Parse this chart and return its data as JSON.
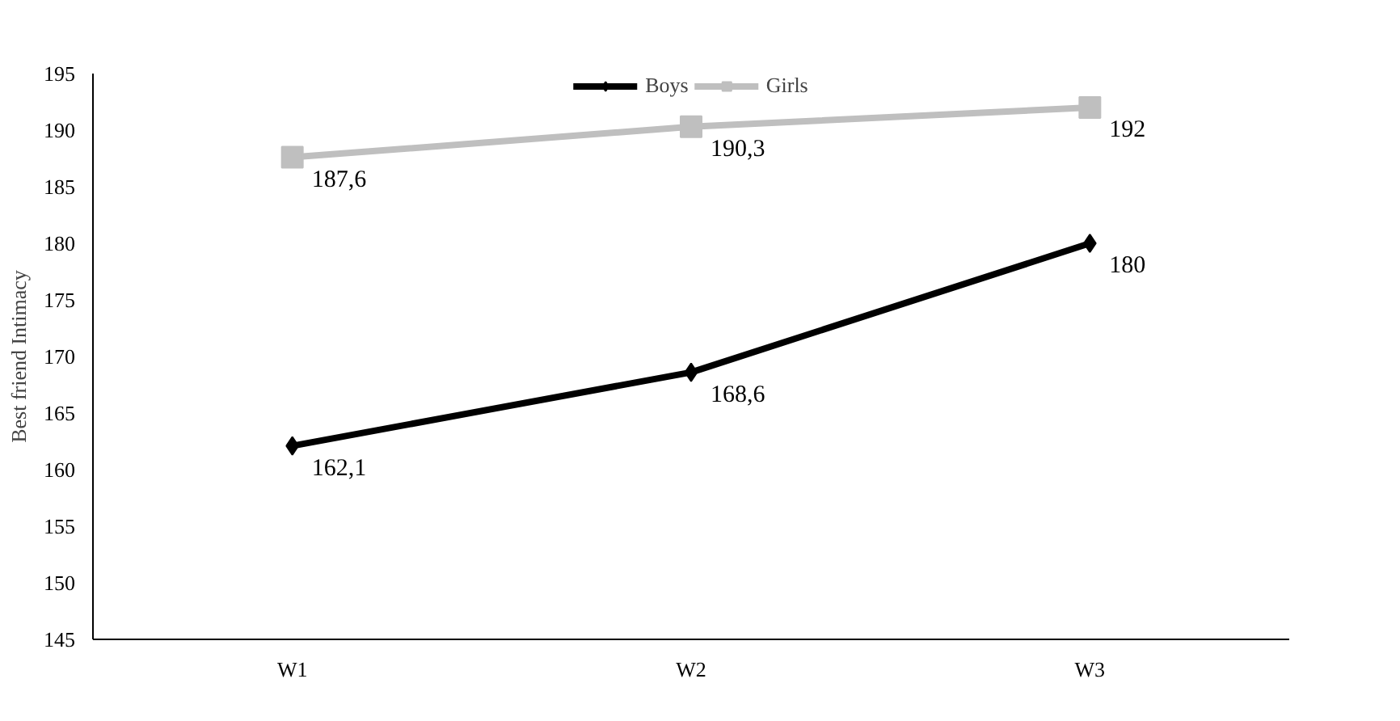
{
  "chart_data": {
    "type": "line",
    "ylabel": "Best friend Intimacy",
    "categories": [
      "W1",
      "W2",
      "W3"
    ],
    "series": [
      {
        "name": "Boys",
        "color": "#000000",
        "marker": "diamond",
        "values": [
          162.1,
          168.6,
          180
        ],
        "value_labels": [
          "162,1",
          "168,6",
          "180"
        ]
      },
      {
        "name": "Girls",
        "color": "#bfbfbf",
        "marker": "square",
        "values": [
          187.6,
          190.3,
          192
        ],
        "value_labels": [
          "187,6",
          "190,3",
          "192"
        ]
      }
    ],
    "ylim": [
      145,
      195
    ],
    "yticks": [
      145,
      150,
      155,
      160,
      165,
      170,
      175,
      180,
      185,
      190,
      195
    ],
    "grid": false,
    "legend": "top",
    "line_style": "solid"
  }
}
